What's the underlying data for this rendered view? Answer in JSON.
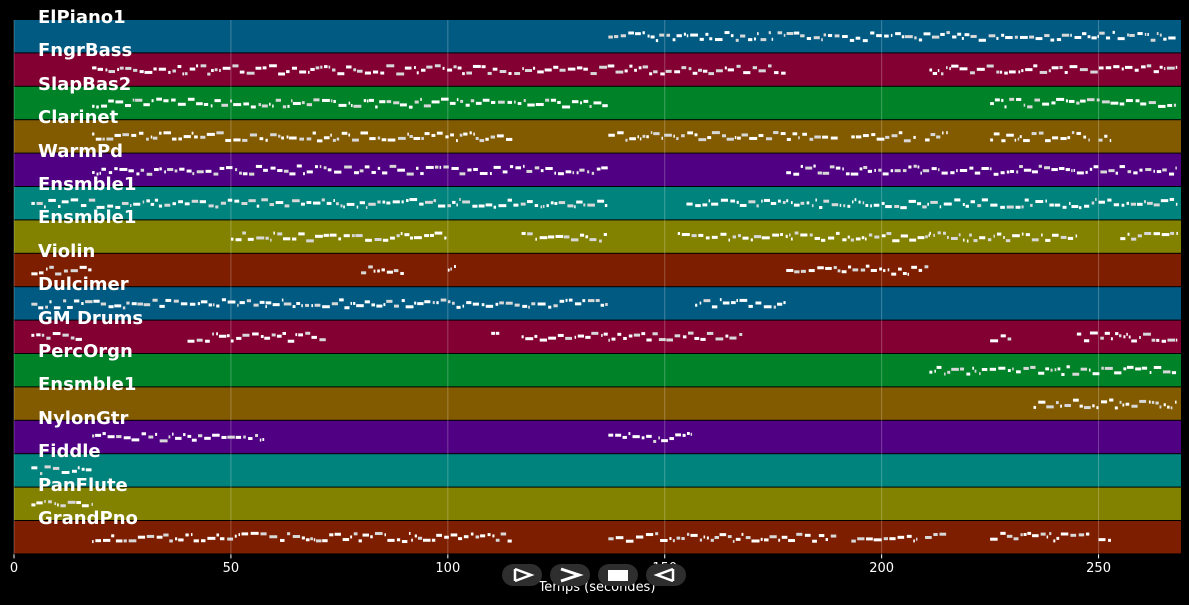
{
  "window": {
    "background": "#000000"
  },
  "tracks": [
    {
      "name": "ElPiano1",
      "color": "#005a82",
      "segments": [
        [
          137,
          175
        ],
        [
          176,
          268
        ]
      ]
    },
    {
      "name": "FngrBass",
      "color": "#820032",
      "segments": [
        [
          18,
          178
        ],
        [
          211,
          268
        ]
      ]
    },
    {
      "name": "SlapBas2",
      "color": "#008228",
      "segments": [
        [
          18,
          137
        ],
        [
          225,
          268
        ]
      ]
    },
    {
      "name": "Clarinet",
      "color": "#825a00",
      "segments": [
        [
          18,
          115
        ],
        [
          137,
          190
        ],
        [
          193,
          208
        ],
        [
          210,
          215
        ],
        [
          225,
          248
        ],
        [
          250,
          253
        ]
      ]
    },
    {
      "name": "WarmPd",
      "color": "#500082",
      "segments": [
        [
          18,
          137
        ],
        [
          178,
          268
        ]
      ]
    },
    {
      "name": "Ensmble1",
      "color": "#00827d",
      "segments": [
        [
          4,
          137
        ],
        [
          155,
          178
        ],
        [
          178,
          268
        ]
      ]
    },
    {
      "name": "Ensmble1",
      "color": "#828200",
      "segments": [
        [
          50,
          100
        ],
        [
          117,
          137
        ],
        [
          153,
          178
        ],
        [
          178,
          211
        ],
        [
          211,
          245
        ],
        [
          255,
          268
        ]
      ]
    },
    {
      "name": "Violin",
      "color": "#7d1e00",
      "segments": [
        [
          4,
          18
        ],
        [
          80,
          90
        ],
        [
          100,
          102
        ],
        [
          178,
          211
        ]
      ]
    },
    {
      "name": "Dulcimer",
      "color": "#005a82",
      "segments": [
        [
          4,
          58
        ],
        [
          58,
          137
        ],
        [
          157,
          178
        ]
      ]
    },
    {
      "name": "GM Drums",
      "color": "#820032",
      "segments": [
        [
          4,
          16
        ],
        [
          40,
          72
        ],
        [
          110,
          112
        ],
        [
          117,
          137
        ],
        [
          137,
          168
        ],
        [
          225,
          230
        ],
        [
          245,
          268
        ]
      ]
    },
    {
      "name": "PercOrgn",
      "color": "#008228",
      "segments": [
        [
          211,
          268
        ]
      ]
    },
    {
      "name": "Ensmble1",
      "color": "#825a00",
      "segments": [
        [
          235,
          268
        ]
      ]
    },
    {
      "name": "NylonGtr",
      "color": "#500082",
      "segments": [
        [
          18,
          58
        ],
        [
          137,
          156
        ]
      ]
    },
    {
      "name": "Fiddle",
      "color": "#00827d",
      "segments": [
        [
          4,
          18
        ]
      ]
    },
    {
      "name": "PanFlute",
      "color": "#828200",
      "segments": [
        [
          4,
          18
        ]
      ]
    },
    {
      "name": "GrandPno",
      "color": "#7d1e00",
      "segments": [
        [
          18,
          115
        ],
        [
          137,
          190
        ],
        [
          193,
          208
        ],
        [
          210,
          215
        ],
        [
          225,
          248
        ],
        [
          250,
          253
        ]
      ]
    }
  ],
  "x_axis": {
    "label": "Temps (secondes)",
    "min": 0,
    "max": 269,
    "ticks": [
      0,
      50,
      100,
      150,
      200,
      250
    ],
    "tick_labels": [
      "0",
      "50",
      "100",
      "150",
      "200",
      "250"
    ]
  },
  "controls": [
    {
      "name": "play-icon"
    },
    {
      "name": "forward-icon"
    },
    {
      "name": "stop-icon"
    },
    {
      "name": "back-icon"
    }
  ]
}
